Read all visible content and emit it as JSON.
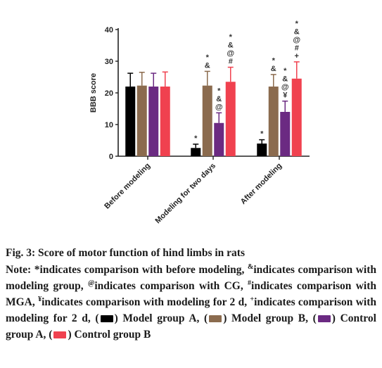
{
  "chart_data": {
    "type": "bar",
    "ylabel": "BBB score",
    "ylim": [
      0,
      40
    ],
    "yticks": [
      "0",
      "10",
      "20",
      "30",
      "40"
    ],
    "categories": [
      "Before modeling",
      "Modeling for two days",
      "After modeling"
    ],
    "series": [
      {
        "color": "#000000",
        "values": [
          22,
          2.6,
          4
        ],
        "errors": [
          4.2,
          1.2,
          1.2
        ]
      },
      {
        "color": "#8b6b4e",
        "values": [
          22.3,
          22.3,
          22
        ],
        "errors": [
          4.2,
          4.5,
          3.8
        ]
      },
      {
        "color": "#6b2a82",
        "values": [
          22,
          10.5,
          14
        ],
        "errors": [
          4.2,
          3.2,
          3.4
        ]
      },
      {
        "color": "#f0414f",
        "values": [
          22,
          23.5,
          24.5
        ],
        "errors": [
          4.6,
          4.6,
          5.3
        ]
      }
    ],
    "annotations": [
      {
        "group": 1,
        "series": 0,
        "lines": [
          "*"
        ]
      },
      {
        "group": 1,
        "series": 1,
        "lines": [
          "*",
          "&"
        ]
      },
      {
        "group": 1,
        "series": 2,
        "lines": [
          "*",
          "&",
          "@"
        ]
      },
      {
        "group": 1,
        "series": 3,
        "lines": [
          "*",
          "&",
          "@",
          "#"
        ]
      },
      {
        "group": 2,
        "series": 0,
        "lines": [
          "*"
        ]
      },
      {
        "group": 2,
        "series": 1,
        "lines": [
          "*",
          "&"
        ]
      },
      {
        "group": 2,
        "series": 2,
        "lines": [
          "*",
          "&",
          "@",
          "¥"
        ]
      },
      {
        "group": 2,
        "series": 3,
        "lines": [
          "*",
          "&",
          "@",
          "#",
          "+"
        ]
      }
    ]
  },
  "caption": {
    "title": "Fig. 3: Score of motor function of hind limbs in rats",
    "note_prefix": "Note: *indicates comparison with before modeling, ",
    "sup_amp": "&",
    "t_amp": "indicates comparison with modeling group, ",
    "sup_at": "@",
    "t_at": "indicates comparison with CG, ",
    "sup_hash": "#",
    "t_hash": "indicates comparison with MGA, ",
    "sup_yen": "¥",
    "t_yen": "indicates comparison with modeling for 2 d, ",
    "sup_plus": "+",
    "t_plus": "indicates comparison with modeling for 2 d, (",
    "legend_a": ") Model group A, (",
    "legend_b": ") Model group B, (",
    "legend_c": ") Control group A, (",
    "legend_d": ") Control group B"
  }
}
